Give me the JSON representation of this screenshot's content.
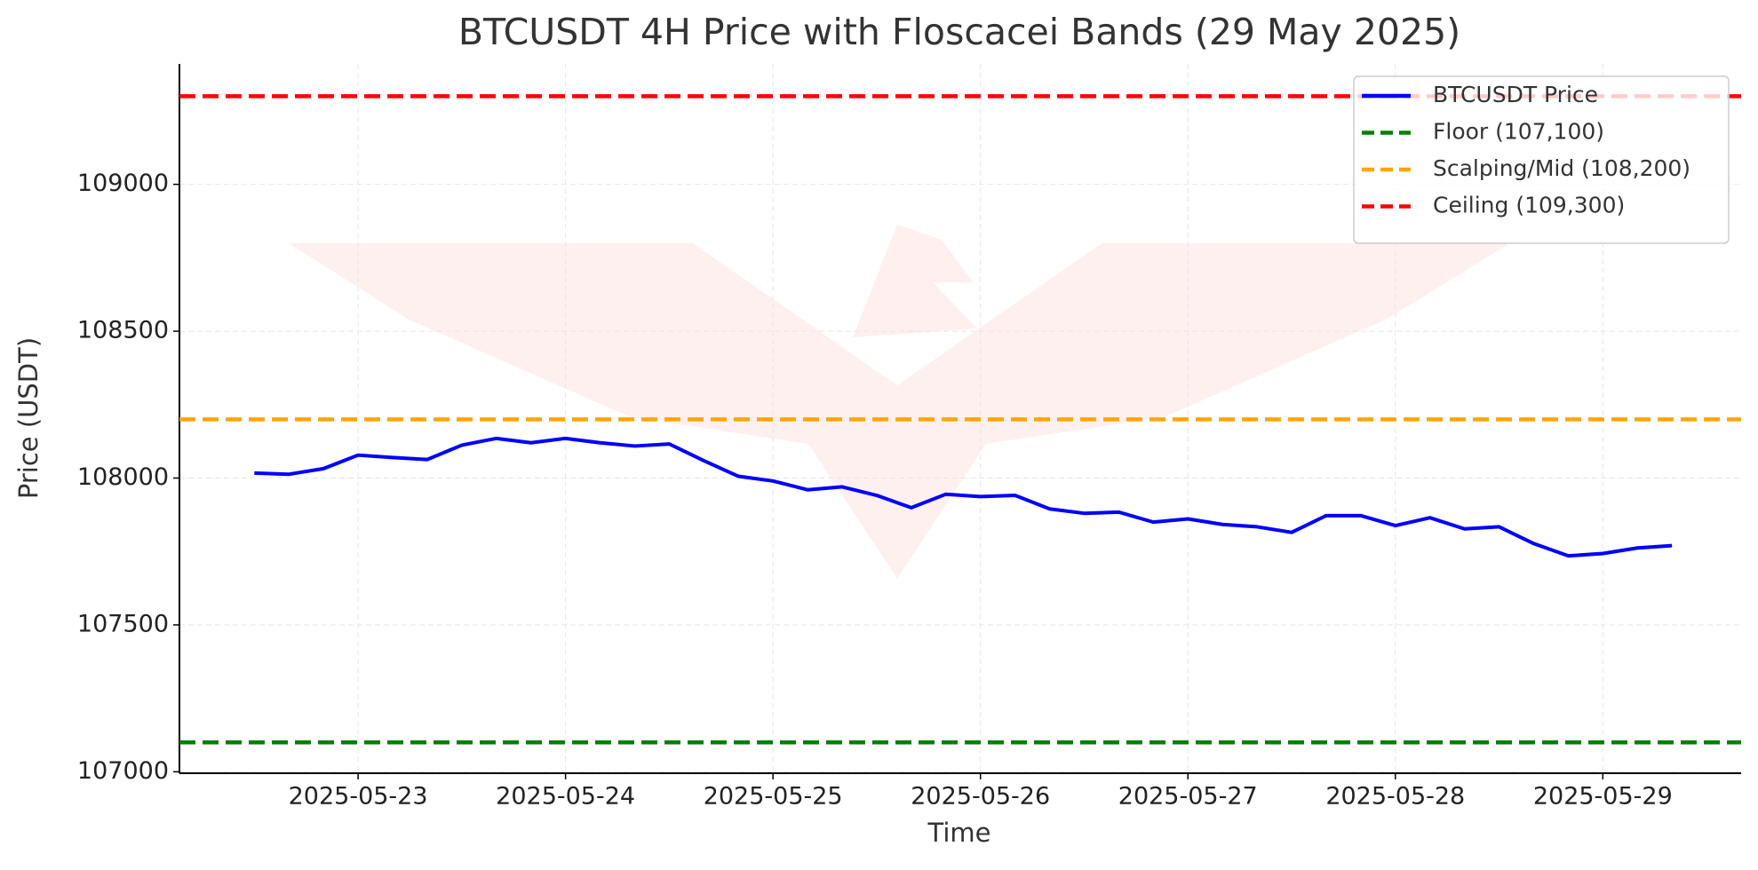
{
  "chart_data": {
    "type": "line",
    "title": "BTCUSDT 4H Price with Floscacei Bands (29 May 2025)",
    "xlabel": "Time",
    "ylabel": "Price (USDT)",
    "x": [
      "2025-05-22T12:00",
      "2025-05-22T16:00",
      "2025-05-22T20:00",
      "2025-05-23T00:00",
      "2025-05-23T04:00",
      "2025-05-23T08:00",
      "2025-05-23T12:00",
      "2025-05-23T16:00",
      "2025-05-23T20:00",
      "2025-05-24T00:00",
      "2025-05-24T04:00",
      "2025-05-24T08:00",
      "2025-05-24T12:00",
      "2025-05-24T16:00",
      "2025-05-24T20:00",
      "2025-05-25T00:00",
      "2025-05-25T04:00",
      "2025-05-25T08:00",
      "2025-05-25T12:00",
      "2025-05-25T16:00",
      "2025-05-25T20:00",
      "2025-05-26T00:00",
      "2025-05-26T04:00",
      "2025-05-26T08:00",
      "2025-05-26T12:00",
      "2025-05-26T16:00",
      "2025-05-26T20:00",
      "2025-05-27T00:00",
      "2025-05-27T04:00",
      "2025-05-27T08:00",
      "2025-05-27T12:00",
      "2025-05-27T16:00",
      "2025-05-27T20:00",
      "2025-05-28T00:00",
      "2025-05-28T04:00",
      "2025-05-28T08:00",
      "2025-05-28T12:00",
      "2025-05-28T16:00",
      "2025-05-28T20:00",
      "2025-05-29T00:00",
      "2025-05-29T04:00",
      "2025-05-29T08:00"
    ],
    "series": [
      {
        "name": "BTCUSDT Price",
        "color": "#0000ff",
        "values": [
          108017,
          108013,
          108032,
          108078,
          108070,
          108063,
          108112,
          108135,
          108120,
          108135,
          108120,
          108109,
          108116,
          108059,
          108006,
          107990,
          107960,
          107970,
          107941,
          107899,
          107945,
          107937,
          107941,
          107895,
          107880,
          107884,
          107850,
          107861,
          107842,
          107834,
          107815,
          107872,
          107872,
          107838,
          107865,
          107827,
          107834,
          107777,
          107735,
          107743,
          107762,
          107770
        ]
      }
    ],
    "hlines": [
      {
        "name": "Floor (107,100)",
        "value": 107100,
        "color": "#008000"
      },
      {
        "name": "Scalping/Mid (108,200)",
        "value": 108200,
        "color": "#ffa500"
      },
      {
        "name": "Ceiling (109,300)",
        "value": 109300,
        "color": "#ff0000"
      }
    ],
    "xlim": [
      "2025-05-22T03:20",
      "2025-05-29T16:00"
    ],
    "xticks": [
      "2025-05-23",
      "2025-05-24",
      "2025-05-25",
      "2025-05-26",
      "2025-05-27",
      "2025-05-28",
      "2025-05-29"
    ],
    "ylim": [
      106995,
      109410
    ],
    "yticks": [
      107000,
      107500,
      108000,
      108500,
      109000
    ],
    "grid": true,
    "legend": "upper right"
  }
}
